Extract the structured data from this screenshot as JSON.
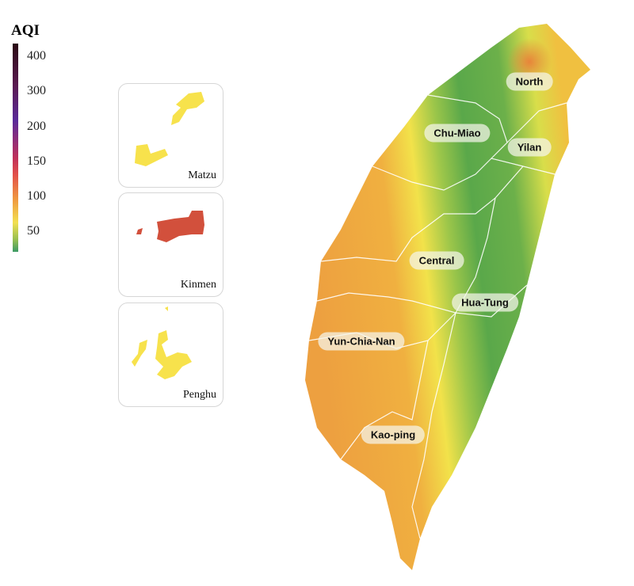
{
  "legend": {
    "title": "AQI",
    "ticks": [
      "400",
      "300",
      "200",
      "150",
      "100",
      "50"
    ],
    "colors": [
      "#2a0a14",
      "#5a2a9a",
      "#c0305a",
      "#f09a40",
      "#f2e050",
      "#3c9a64"
    ]
  },
  "insets": [
    {
      "label": "Matzu",
      "color": "#f7e24c"
    },
    {
      "label": "Kinmen",
      "color": "#d2503c"
    },
    {
      "label": "Penghu",
      "color": "#f7e24c"
    }
  ],
  "regions": [
    "North",
    "Chu-Miao",
    "Yilan",
    "Central",
    "Hua-Tung",
    "Yun-Chia-Nan",
    "Kao-ping"
  ],
  "map_colors": {
    "low": "#5aa84a",
    "moderate": "#f2e24a",
    "unhealthy_sensitive": "#eda040"
  }
}
